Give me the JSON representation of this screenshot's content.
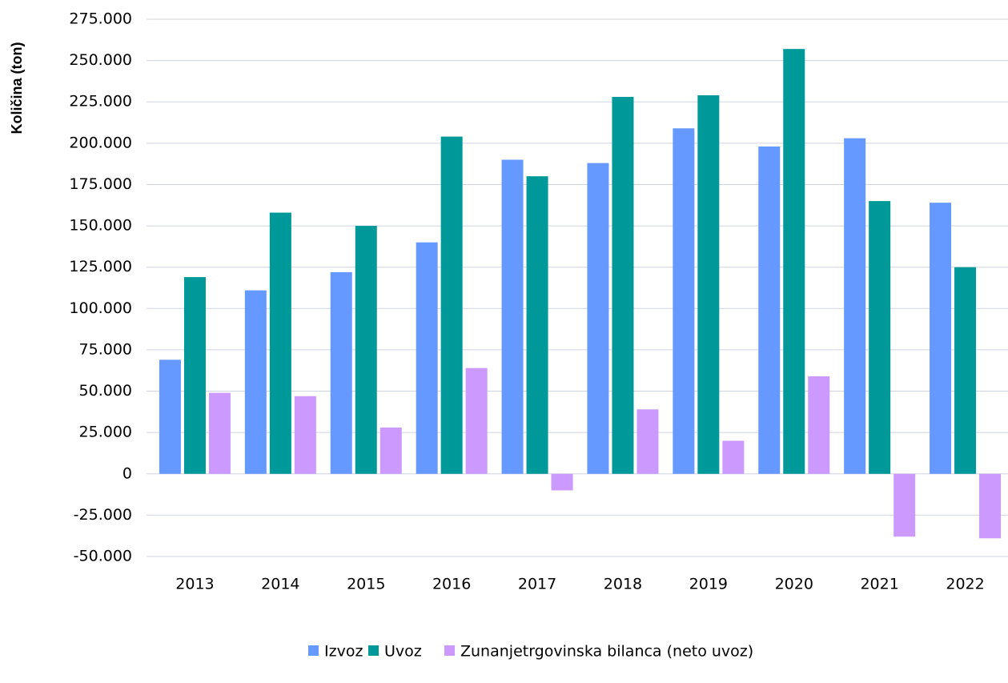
{
  "chart_data": {
    "type": "bar",
    "y_label": "Količina (ton)",
    "categories": [
      "2013",
      "2014",
      "2015",
      "2016",
      "2017",
      "2018",
      "2019",
      "2020",
      "2021",
      "2022"
    ],
    "series": [
      {
        "name": "Izvoz",
        "color": "#6699ff",
        "values": [
          69000,
          111000,
          122000,
          140000,
          190000,
          188000,
          209000,
          198000,
          203000,
          164000
        ]
      },
      {
        "name": "Uvoz",
        "color": "#009999",
        "values": [
          119000,
          158000,
          150000,
          204000,
          180000,
          228000,
          229000,
          257000,
          165000,
          125000
        ]
      },
      {
        "name": "Zunanjetrgovinska bilanca (neto uvoz)",
        "color": "#cc99ff",
        "values": [
          49000,
          47000,
          28000,
          64000,
          -10000,
          39000,
          20000,
          59000,
          -38000,
          -39000
        ]
      }
    ],
    "ylim": [
      -50000,
      275000
    ],
    "yticks": [
      {
        "value": -50000,
        "label": "-50.000"
      },
      {
        "value": -25000,
        "label": "-25.000"
      },
      0,
      {
        "value": 25000,
        "label": "25.000"
      },
      {
        "value": 50000,
        "label": "50.000"
      },
      {
        "value": 75000,
        "label": "75.000"
      },
      {
        "value": 100000,
        "label": "100.000"
      },
      {
        "value": 125000,
        "label": "125.000"
      },
      {
        "value": 150000,
        "label": "150.000"
      },
      {
        "value": 175000,
        "label": "175.000"
      },
      {
        "value": 200000,
        "label": "200.000"
      },
      {
        "value": 225000,
        "label": "225.000"
      },
      {
        "value": 250000,
        "label": "250.000"
      },
      {
        "value": 275000,
        "label": "275.000"
      }
    ],
    "grid": true
  }
}
